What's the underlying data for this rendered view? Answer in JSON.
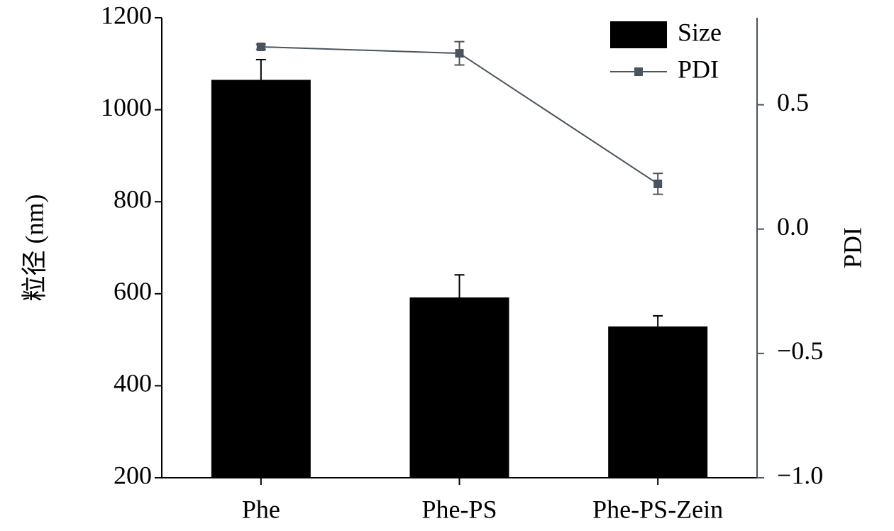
{
  "chart_data": {
    "type": "bar",
    "categories": [
      "Phe",
      "Phe-PS",
      "Phe-PS-Zein"
    ],
    "ylabel": "粒径 (nm)",
    "y2label": "PDI",
    "ylim": [
      200,
      1200
    ],
    "yticks": [
      200,
      400,
      600,
      800,
      1000,
      1200
    ],
    "y2lim": [
      -1.0,
      0.85
    ],
    "y2ticks": [
      {
        "value": -1.0,
        "label": "−1.0"
      },
      {
        "value": -0.5,
        "label": "−0.5"
      },
      {
        "value": 0,
        "label": "0.0"
      },
      0.5
    ],
    "legend": "upper right",
    "series": [
      {
        "name": "Size",
        "type": "bar",
        "color": "#000000",
        "values": [
          1065,
          592,
          529
        ],
        "errors": [
          44,
          49,
          23
        ]
      },
      {
        "name": "PDI",
        "type": "line",
        "axis": "y2",
        "color": "#4a545e",
        "values": [
          0.733,
          0.707,
          0.182
        ],
        "errors": [
          0.01,
          0.047,
          0.042
        ]
      }
    ]
  }
}
